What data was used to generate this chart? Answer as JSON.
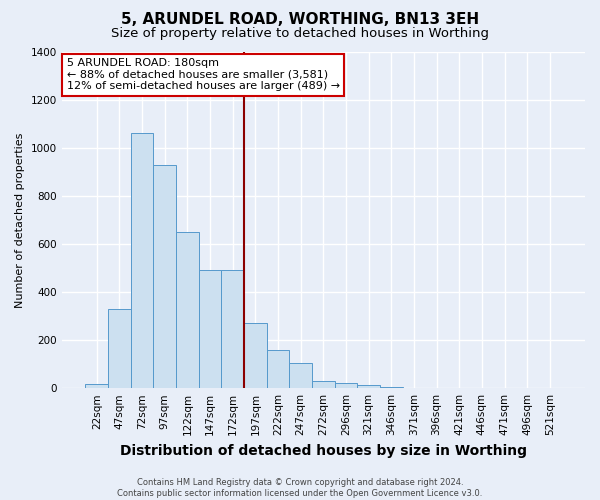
{
  "title": "5, ARUNDEL ROAD, WORTHING, BN13 3EH",
  "subtitle": "Size of property relative to detached houses in Worthing",
  "xlabel": "Distribution of detached houses by size in Worthing",
  "ylabel": "Number of detached properties",
  "categories": [
    "22sqm",
    "47sqm",
    "72sqm",
    "97sqm",
    "122sqm",
    "147sqm",
    "172sqm",
    "197sqm",
    "222sqm",
    "247sqm",
    "272sqm",
    "296sqm",
    "321sqm",
    "346sqm",
    "371sqm",
    "396sqm",
    "421sqm",
    "446sqm",
    "471sqm",
    "496sqm",
    "521sqm"
  ],
  "values": [
    18,
    330,
    1060,
    930,
    650,
    490,
    490,
    270,
    160,
    105,
    30,
    20,
    15,
    6,
    0,
    0,
    0,
    0,
    0,
    0,
    0
  ],
  "bar_color": "#cce0f0",
  "bar_edge_color": "#5599cc",
  "property_line_color": "#8b0000",
  "annotation_text": "5 ARUNDEL ROAD: 180sqm\n← 88% of detached houses are smaller (3,581)\n12% of semi-detached houses are larger (489) →",
  "annotation_box_color": "#ffffff",
  "annotation_box_edge_color": "#cc0000",
  "ylim": [
    0,
    1400
  ],
  "yticks": [
    0,
    200,
    400,
    600,
    800,
    1000,
    1200,
    1400
  ],
  "footer": "Contains HM Land Registry data © Crown copyright and database right 2024.\nContains public sector information licensed under the Open Government Licence v3.0.",
  "background_color": "#e8eef8",
  "plot_background": "#e8eef8",
  "grid_color": "#ffffff",
  "title_fontsize": 11,
  "subtitle_fontsize": 9.5,
  "xlabel_fontsize": 10,
  "ylabel_fontsize": 8,
  "tick_fontsize": 7.5
}
